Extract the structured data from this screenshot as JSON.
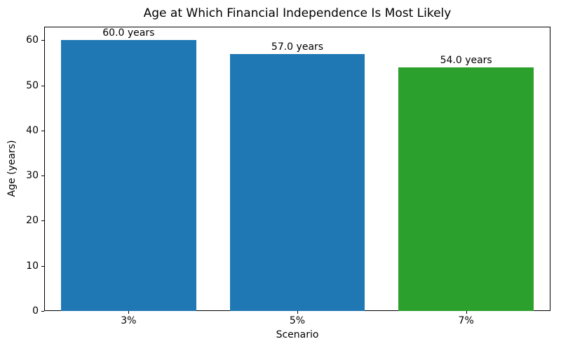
{
  "chart_data": {
    "type": "bar",
    "title": "Age at Which Financial Independence Is Most Likely",
    "xlabel": "Scenario",
    "ylabel": "Age (years)",
    "categories": [
      "3%",
      "5%",
      "7%"
    ],
    "values": [
      60.0,
      57.0,
      54.0
    ],
    "bar_labels": [
      "60.0 years",
      "57.0 years",
      "54.0 years"
    ],
    "bar_colors": [
      "#1f77b4",
      "#1f77b4",
      "#2ca02c"
    ],
    "ylim": [
      0,
      63
    ],
    "yticks": [
      0,
      10,
      20,
      30,
      40,
      50,
      60
    ],
    "grid": false,
    "legend_position": "none",
    "frame": "full-box",
    "background_color": "#ffffff",
    "text_color": "#000000"
  }
}
